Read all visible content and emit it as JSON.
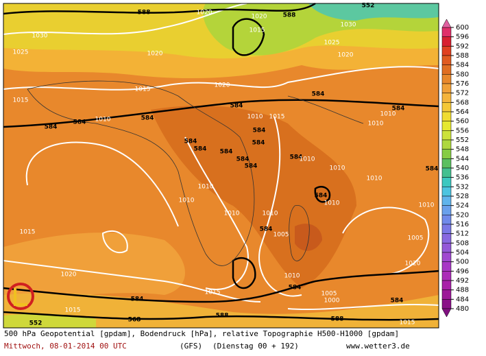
{
  "colorbar": {
    "levels": [
      600,
      596,
      592,
      588,
      584,
      580,
      576,
      572,
      568,
      564,
      560,
      556,
      552,
      548,
      544,
      540,
      536,
      532,
      528,
      524,
      520,
      516,
      512,
      508,
      504,
      500,
      496,
      492,
      488,
      484,
      480
    ]
  },
  "contour_labels": [
    588,
    588,
    552,
    1020,
    1020,
    1030,
    1015,
    1030,
    1025,
    1020,
    1025,
    1020,
    1015,
    1020,
    1015,
    584,
    584,
    584,
    584,
    584,
    1010,
    584,
    1010,
    1015,
    1010,
    1010,
    584,
    584,
    584,
    584,
    584,
    584,
    584,
    584,
    1010,
    1010,
    584,
    1010,
    1010,
    1010,
    584,
    1010,
    1010,
    1010,
    1010,
    584,
    1005,
    1015,
    1005,
    1020,
    1020,
    1010,
    584,
    584,
    1005,
    584,
    1000,
    1015,
    1015,
    552,
    568,
    588,
    588,
    1015
  ],
  "footer": {
    "line1": "500 hPa Geopotential [gpdam], Bodendruck [hPa], relative Topographie H500-H1000 [gpdam]",
    "date": "Mittwoch, 08-01-2014  00 UTC",
    "model": "(GFS)",
    "run": "(Dienstag 00 + 192)",
    "site": "www.wetter3.de"
  }
}
